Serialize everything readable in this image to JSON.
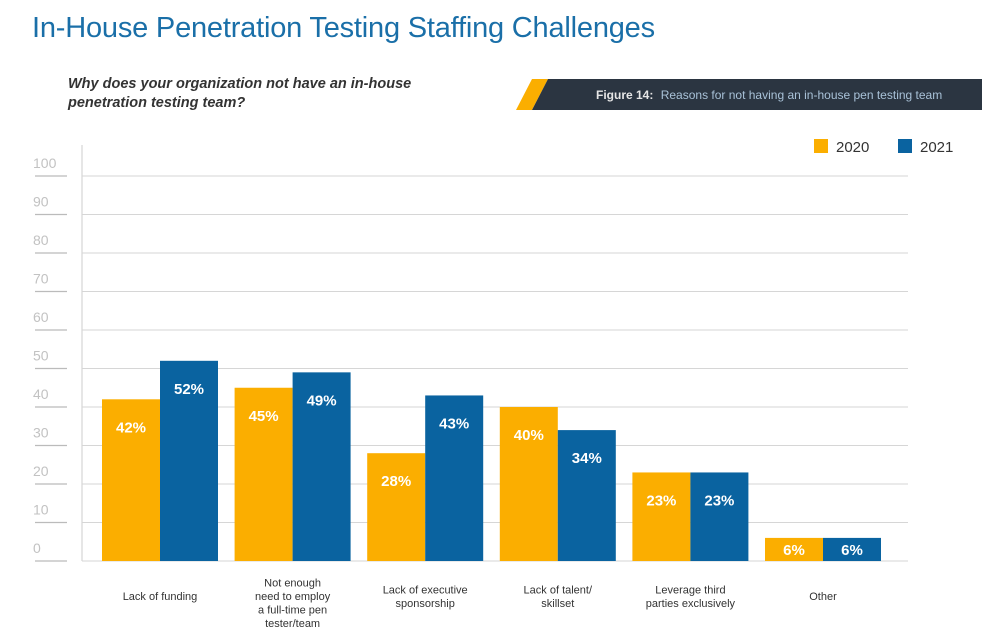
{
  "page": {
    "title": "In-House Penetration Testing Staffing Challenges",
    "question": "Why does your organization not have an in-house penetration testing team?",
    "figure_label": "Figure 14:",
    "figure_caption": "Reasons for not having an in-house pen testing team"
  },
  "colors": {
    "2020": "#fbae00",
    "2021": "#0a63a0",
    "banner": "#2b3541",
    "title": "#1a6fa8"
  },
  "chart_data": {
    "type": "bar",
    "title": "",
    "xlabel": "",
    "ylabel": "",
    "ylim": [
      0,
      100
    ],
    "yticks": [
      0,
      10,
      20,
      30,
      40,
      50,
      60,
      70,
      80,
      90,
      100
    ],
    "grid": true,
    "legend": "top-right",
    "categories": [
      [
        "Lack of funding"
      ],
      [
        "Not enough",
        "need to employ",
        "a full-time pen",
        "tester/team"
      ],
      [
        "Lack of executive",
        "sponsorship"
      ],
      [
        "Lack of talent/",
        "skillset"
      ],
      [
        "Leverage third",
        "parties exclusively"
      ],
      [
        "Other"
      ]
    ],
    "series": [
      {
        "name": "2020",
        "values": [
          42,
          45,
          28,
          40,
          23,
          6
        ],
        "labels": [
          "42%",
          "45%",
          "28%",
          "40%",
          "23%",
          "6%"
        ]
      },
      {
        "name": "2021",
        "values": [
          52,
          49,
          43,
          34,
          23,
          6
        ],
        "labels": [
          "52%",
          "49%",
          "43%",
          "34%",
          "23%",
          "6%"
        ]
      }
    ]
  }
}
